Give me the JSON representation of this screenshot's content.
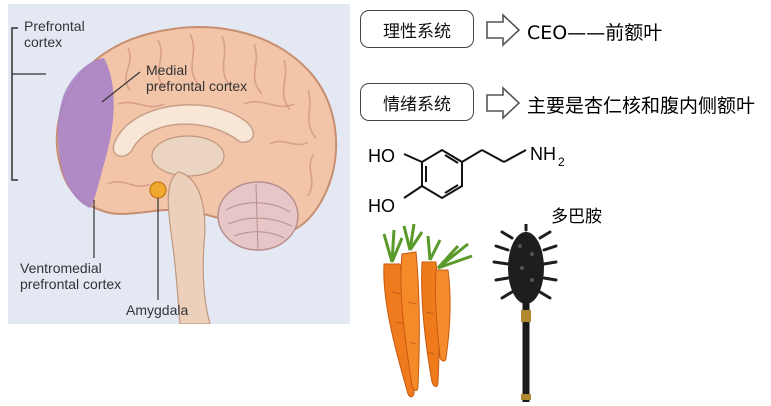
{
  "brain_diagram": {
    "labels": {
      "prefrontal_cortex": "Prefrontal\ncortex",
      "medial_prefrontal_cortex": "Medial\nprefrontal cortex",
      "ventromedial_prefrontal_cortex": "Ventromedial\nprefrontal cortex",
      "amygdala": "Amygdala"
    },
    "colors": {
      "panel_bg": "#e4e8f2",
      "cortex": "#f2c4a8",
      "prefrontal_highlight": "#a884c8",
      "amygdala": "#f0a830"
    }
  },
  "systems": [
    {
      "box_label": "理性系统",
      "description": "CEO——前额叶"
    },
    {
      "box_label": "情绪系统",
      "description": "主要是杏仁核和腹内侧额叶"
    }
  ],
  "dopamine": {
    "ho_top": "HO",
    "ho_bottom": "HO",
    "amine_group": "NH",
    "amine_subscript": "2",
    "name": "多巴胺"
  },
  "images": {
    "carrot": "carrot-icon",
    "stick": "spiked-stick-icon"
  }
}
